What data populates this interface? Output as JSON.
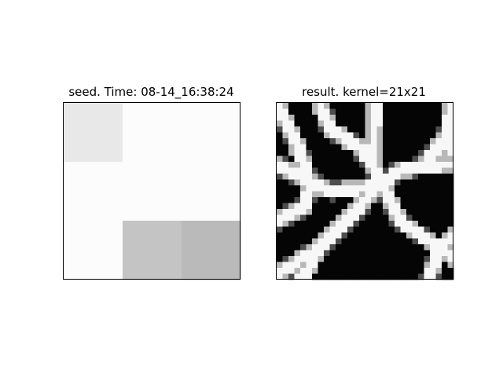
{
  "figure": {
    "background": "#ffffff"
  },
  "chart_data": [
    {
      "type": "heatmap",
      "title": "seed. Time: 08-14_16:38:24",
      "colormap": "gray",
      "axes_visible": false,
      "rows": 3,
      "cols": 3,
      "values": [
        [
          0.91,
          0.99,
          0.99
        ],
        [
          0.99,
          0.99,
          0.99
        ],
        [
          0.99,
          0.77,
          0.73
        ]
      ]
    },
    {
      "type": "heatmap",
      "title": "result. kernel=21x21",
      "colormap": "gray",
      "axes_visible": false,
      "rows": 30,
      "cols": 30,
      "description_of_pattern": "binary-like network of white branching ridges on black background",
      "ridges": [
        {
          "from": [
            0,
            0.0
          ],
          "to": [
            3.5,
            7.3
          ]
        },
        {
          "from": [
            3.5,
            7.3
          ],
          "to": [
            4.6,
            10.5
          ]
        },
        {
          "from": [
            4.6,
            10.5
          ],
          "to": [
            5.8,
            13.8
          ]
        },
        {
          "from": [
            0,
            10.5
          ],
          "to": [
            9.2,
            15.0
          ]
        },
        {
          "from": [
            9.2,
            15.0
          ],
          "to": [
            13.8,
            14.6
          ]
        },
        {
          "from": [
            13.8,
            14.6
          ],
          "to": [
            17.7,
            13.8
          ]
        },
        {
          "from": [
            17.7,
            13.8
          ],
          "to": [
            16.2,
            10.5
          ]
        },
        {
          "from": [
            16.2,
            10.5
          ],
          "to": [
            13.8,
            7.3
          ]
        },
        {
          "from": [
            13.8,
            7.3
          ],
          "to": [
            9.2,
            4.6
          ]
        },
        {
          "from": [
            9.2,
            4.6
          ],
          "to": [
            7.3,
            0
          ]
        },
        {
          "from": [
            17.7,
            13.8
          ],
          "to": [
            20.8,
            20.0
          ]
        },
        {
          "from": [
            20.8,
            20.0
          ],
          "to": [
            27.7,
            24.6
          ]
        },
        {
          "from": [
            27.7,
            24.6
          ],
          "to": [
            30,
            26.5
          ]
        },
        {
          "from": [
            17.7,
            13.8
          ],
          "to": [
            20.8,
            11.5
          ]
        },
        {
          "from": [
            20.8,
            11.5
          ],
          "to": [
            24.6,
            10.8
          ]
        },
        {
          "from": [
            24.6,
            10.8
          ],
          "to": [
            30,
            10.5
          ]
        },
        {
          "from": [
            24.6,
            10.8
          ],
          "to": [
            28.5,
            6.2
          ]
        },
        {
          "from": [
            28.5,
            6.2
          ],
          "to": [
            30,
            0
          ]
        },
        {
          "from": [
            27.7,
            24.6
          ],
          "to": [
            30,
            22.3
          ]
        },
        {
          "from": [
            27.7,
            24.6
          ],
          "to": [
            25.8,
            30
          ]
        },
        {
          "from": [
            16.2,
            10.5
          ],
          "to": [
            16.8,
            0
          ]
        },
        {
          "from": [
            17.7,
            13.8
          ],
          "to": [
            13.8,
            18.0
          ]
        },
        {
          "from": [
            13.8,
            18.0
          ],
          "to": [
            7.3,
            24.6
          ]
        },
        {
          "from": [
            7.3,
            24.6
          ],
          "to": [
            0,
            29.2
          ]
        },
        {
          "from": [
            7.3,
            24.6
          ],
          "to": [
            4.2,
            30
          ]
        },
        {
          "from": [
            5.8,
            13.8
          ],
          "to": [
            4.6,
            17.7
          ]
        },
        {
          "from": [
            4.6,
            17.7
          ],
          "to": [
            0,
            20.0
          ]
        },
        {
          "from": [
            28.5,
            6.2
          ],
          "to": [
            30,
            8.5
          ]
        }
      ]
    }
  ]
}
